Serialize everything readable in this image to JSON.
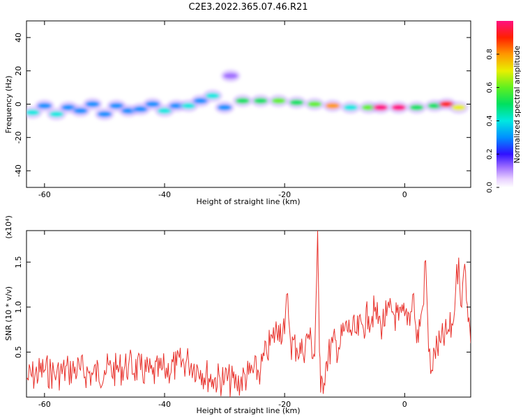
{
  "title": "C2E3.2022.365.07.46.R21",
  "colors": {
    "snr_line": "#e8322c",
    "axis": "#000000"
  },
  "chart_data": [
    {
      "type": "heatmap",
      "xlabel": "Height of straight line (km)",
      "ylabel": "Frequency (Hz)",
      "xlim": [
        -63,
        11
      ],
      "ylim": [
        -50,
        50
      ],
      "x_ticks": [
        -60,
        -40,
        -20,
        0
      ],
      "y_ticks": [
        -40,
        -20,
        0,
        20,
        40
      ],
      "colorbar": {
        "label": "Normalized spectral amplitude",
        "range": [
          0,
          1
        ],
        "ticks": [
          "0.0",
          "0.2",
          "0.4",
          "0.6",
          "0.8"
        ]
      },
      "blobs": [
        {
          "x": -62,
          "y": -5,
          "amp": 0.45
        },
        {
          "x": -60,
          "y": -1,
          "amp": 0.35
        },
        {
          "x": -58,
          "y": -6,
          "amp": 0.4
        },
        {
          "x": -56,
          "y": -2,
          "amp": 0.3
        },
        {
          "x": -54,
          "y": -4,
          "amp": 0.35
        },
        {
          "x": -52,
          "y": 0,
          "amp": 0.3
        },
        {
          "x": -50,
          "y": -6,
          "amp": 0.35
        },
        {
          "x": -48,
          "y": -1,
          "amp": 0.3
        },
        {
          "x": -46,
          "y": -4,
          "amp": 0.3
        },
        {
          "x": -44,
          "y": -3,
          "amp": 0.35
        },
        {
          "x": -42,
          "y": 0,
          "amp": 0.3
        },
        {
          "x": -40,
          "y": -4,
          "amp": 0.4
        },
        {
          "x": -38,
          "y": -1,
          "amp": 0.35
        },
        {
          "x": -36,
          "y": -1,
          "amp": 0.4
        },
        {
          "x": -34,
          "y": 2,
          "amp": 0.35
        },
        {
          "x": -32,
          "y": 5,
          "amp": 0.4
        },
        {
          "x": -30,
          "y": -2,
          "amp": 0.35
        },
        {
          "x": -29,
          "y": 17,
          "amp": 0.15
        },
        {
          "x": -27,
          "y": 2,
          "amp": 0.55
        },
        {
          "x": -24,
          "y": 2,
          "amp": 0.55
        },
        {
          "x": -21,
          "y": 2,
          "amp": 0.6
        },
        {
          "x": -18,
          "y": 1,
          "amp": 0.55
        },
        {
          "x": -15,
          "y": 0,
          "amp": 0.6
        },
        {
          "x": -12,
          "y": -1,
          "amp": 0.85
        },
        {
          "x": -9,
          "y": -2,
          "amp": 0.45
        },
        {
          "x": -6,
          "y": -2,
          "amp": 0.6
        },
        {
          "x": -4,
          "y": -2,
          "amp": 1.0
        },
        {
          "x": -1,
          "y": -2,
          "amp": 1.0
        },
        {
          "x": 2,
          "y": -2,
          "amp": 0.5
        },
        {
          "x": 5,
          "y": -1,
          "amp": 0.55
        },
        {
          "x": 7,
          "y": 0,
          "amp": 0.95
        },
        {
          "x": 9,
          "y": -2,
          "amp": 0.75
        }
      ]
    },
    {
      "type": "line",
      "xlabel": "Height of straight line (km)",
      "ylabel": "SNR (10 * v/v)",
      "multiplier": "(x10⁴)",
      "xlim": [
        -63,
        11
      ],
      "ylim": [
        0,
        1.85
      ],
      "x_ticks": [
        -60,
        -40,
        -20,
        0
      ],
      "y_ticks": [
        "0.5",
        "1.0",
        "1.5"
      ],
      "series": [
        {
          "x": [
            -63,
            -60,
            -58,
            -56,
            -54,
            -52,
            -50,
            -48,
            -46,
            -44,
            -42,
            -40,
            -38,
            -36,
            -34,
            -32,
            -30,
            -28,
            -26,
            -24,
            -23,
            -22,
            -21,
            -20,
            -19.5,
            -19,
            -18,
            -17,
            -16,
            -15,
            -14.5,
            -14.2,
            -14,
            -13,
            -12,
            -11,
            -10,
            -9,
            -8,
            -7,
            -6,
            -5,
            -4,
            -3,
            -2,
            -1,
            0,
            1,
            1.5,
            2,
            3,
            3.5,
            4,
            4.5,
            5,
            6,
            7,
            8,
            8.5,
            9,
            9.5,
            10,
            11
          ],
          "y": [
            0.2,
            0.3,
            0.25,
            0.3,
            0.3,
            0.25,
            0.3,
            0.3,
            0.35,
            0.3,
            0.25,
            0.3,
            0.35,
            0.4,
            0.3,
            0.2,
            0.2,
            0.15,
            0.25,
            0.3,
            0.5,
            0.65,
            0.8,
            0.7,
            1.15,
            0.6,
            0.55,
            0.5,
            0.7,
            0.45,
            1.85,
            0.5,
            0.05,
            0.4,
            0.6,
            0.55,
            0.75,
            0.75,
            0.7,
            0.8,
            0.9,
            0.95,
            0.8,
            0.9,
            0.95,
            0.85,
            0.9,
            0.95,
            1.15,
            0.6,
            1.0,
            1.52,
            0.5,
            0.3,
            0.5,
            0.6,
            0.7,
            0.8,
            1.2,
            1.55,
            1.0,
            1.48,
            0.6
          ]
        }
      ]
    }
  ]
}
